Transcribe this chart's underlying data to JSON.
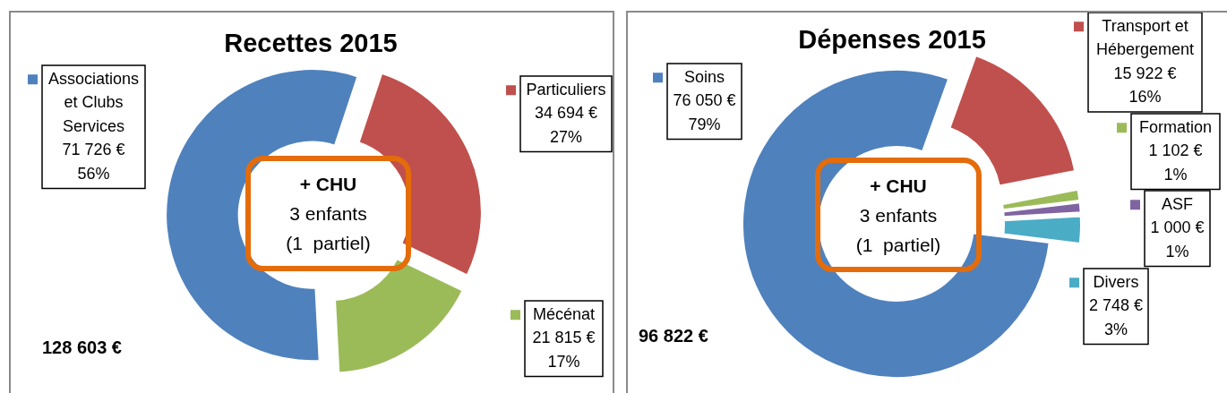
{
  "chart_data": [
    {
      "type": "donut",
      "title": "Recettes 2015",
      "categories": [
        "Associations et Clubs Services",
        "Particuliers",
        "Mécénat"
      ],
      "values": [
        71726,
        34694,
        21815
      ],
      "colors": [
        "#4f81bd",
        "#c0504d",
        "#9bbb59"
      ],
      "value_labels": [
        "71 726 €\n56%",
        "34 694 €\n27%",
        "21 815 €\n17%"
      ],
      "legend": "right",
      "annotations": [
        "+ CHU\n3 enfants\n(1  partiel)",
        "128 603 €"
      ]
    },
    {
      "type": "donut",
      "title": "Dépenses 2015",
      "categories": [
        "Soins",
        "Transport et Hébergement",
        "Formation",
        "ASF",
        "Divers"
      ],
      "values": [
        76050,
        15922,
        1102,
        1000,
        2748
      ],
      "colors": [
        "#4f81bd",
        "#c0504d",
        "#9bbb59",
        "#8064a2",
        "#4bacc6"
      ],
      "value_labels": [
        "76 050 €\n79%",
        "15 922 €\n16%",
        "1 102 €\n1%",
        "1 000 €\n1%",
        "2 748 €\n3%"
      ],
      "legend": "right",
      "annotations": [
        "+ CHU\n3 enfants\n(1  partiel)",
        "96 822 €"
      ]
    }
  ]
}
